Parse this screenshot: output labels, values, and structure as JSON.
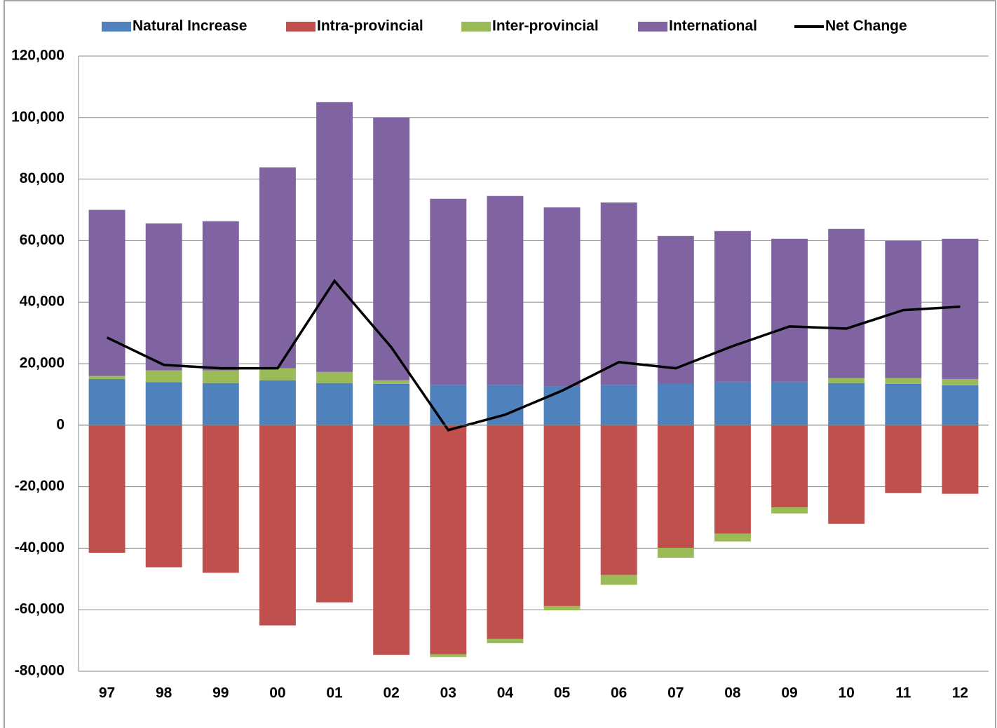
{
  "chart_data": {
    "type": "bar",
    "categories": [
      "97",
      "98",
      "99",
      "00",
      "01",
      "02",
      "03",
      "04",
      "05",
      "06",
      "07",
      "08",
      "09",
      "10",
      "11",
      "12"
    ],
    "series": [
      {
        "name": "Natural Increase",
        "color": "#4f81bd",
        "values": [
          15000,
          14000,
          13700,
          14600,
          13700,
          13400,
          13000,
          13000,
          12500,
          13000,
          13400,
          14100,
          14100,
          13700,
          13400,
          13000
        ]
      },
      {
        "name": "Intra-provincial",
        "color": "#c0504d",
        "values": [
          -41500,
          -46200,
          -48000,
          -65100,
          -57600,
          -74700,
          -74500,
          -69500,
          -58800,
          -48700,
          -39900,
          -35300,
          -26700,
          -32100,
          -22100,
          -22300
        ]
      },
      {
        "name": "Inter-provincial",
        "color": "#9bbb59",
        "values": [
          1000,
          3800,
          4100,
          3900,
          3600,
          1200,
          -900,
          -1400,
          -1400,
          -3200,
          -3200,
          -2500,
          -2000,
          1600,
          1900,
          2000
        ]
      },
      {
        "name": "International",
        "color": "#8064a2",
        "values": [
          54000,
          47800,
          48500,
          65300,
          87700,
          85400,
          60600,
          61500,
          58300,
          59400,
          48100,
          49000,
          46500,
          48500,
          44600,
          45600
        ]
      },
      {
        "name": "Net Change",
        "color": "#000000",
        "type": "line",
        "values": [
          28500,
          19600,
          18500,
          18500,
          46900,
          25300,
          -1600,
          3400,
          11200,
          20500,
          18500,
          25700,
          32100,
          31400,
          37400,
          38500
        ]
      }
    ],
    "ylim": [
      -80000,
      120000
    ],
    "yticks": [
      {
        "value": -80000,
        "label": "-80,000"
      },
      {
        "value": -60000,
        "label": "-60,000"
      },
      {
        "value": -40000,
        "label": "-40,000"
      },
      {
        "value": -20000,
        "label": "-20,000"
      },
      0,
      {
        "value": 20000,
        "label": "20,000"
      },
      {
        "value": 40000,
        "label": "40,000"
      },
      {
        "value": 60000,
        "label": "60,000"
      },
      {
        "value": 80000,
        "label": "80,000"
      },
      {
        "value": 100000,
        "label": "100,000"
      },
      {
        "value": 120000,
        "label": "120,000"
      }
    ],
    "grid": true,
    "legend": "top"
  }
}
